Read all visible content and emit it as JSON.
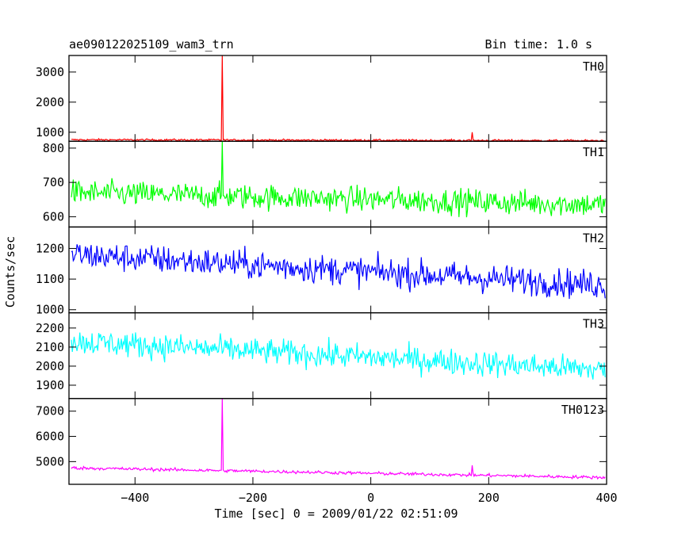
{
  "header": {
    "title": "ae090122025109_wam3_trn",
    "bin_time": "Bin time: 1.0 s"
  },
  "chart_data": {
    "type": "line",
    "ylabel": "Counts/sec",
    "xlabel": "Time [sec] 0 = 2009/01/22 02:51:09",
    "xlim": [
      -512,
      400
    ],
    "xticks": [
      -400,
      -200,
      0,
      200,
      400
    ],
    "grid": false,
    "panels": [
      {
        "name": "TH0",
        "color": "#ff0000",
        "ylim": [
          700,
          3550
        ],
        "yticks": [
          1000,
          2000,
          3000
        ],
        "baseline_start": 750,
        "baseline_end": 720,
        "noise": 30,
        "spikes": [
          {
            "x": -252,
            "y": 3550
          },
          {
            "x": 172,
            "y": 1000
          }
        ]
      },
      {
        "name": "TH1",
        "color": "#00ff00",
        "ylim": [
          570,
          820
        ],
        "yticks": [
          600,
          700,
          800
        ],
        "baseline_start": 670,
        "baseline_end": 635,
        "noise": 35,
        "spikes": [
          {
            "x": -252,
            "y": 820
          }
        ]
      },
      {
        "name": "TH2",
        "color": "#0000ff",
        "ylim": [
          990,
          1270
        ],
        "yticks": [
          1000,
          1100,
          1200
        ],
        "baseline_start": 1180,
        "baseline_end": 1080,
        "noise": 45,
        "spikes": []
      },
      {
        "name": "TH3",
        "color": "#00ffff",
        "ylim": [
          1830,
          2280
        ],
        "yticks": [
          1900,
          2000,
          2100,
          2200
        ],
        "baseline_start": 2130,
        "baseline_end": 1980,
        "noise": 65,
        "spikes": []
      },
      {
        "name": "TH0123",
        "color": "#ff00ff",
        "ylim": [
          4100,
          7500
        ],
        "yticks": [
          5000,
          6000,
          7000
        ],
        "baseline_start": 4750,
        "baseline_end": 4370,
        "noise": 60,
        "spikes": [
          {
            "x": -252,
            "y": 7500
          },
          {
            "x": 172,
            "y": 4850
          }
        ]
      }
    ]
  }
}
